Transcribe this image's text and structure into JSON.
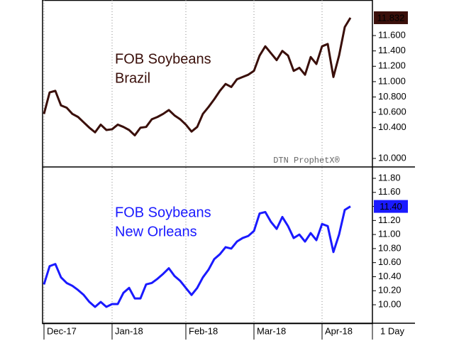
{
  "chart_data": [
    {
      "type": "line",
      "title": "FOB Soybeans",
      "subtitle": "Brazil",
      "annotation": "DTN ProphetX®",
      "ylim": [
        9.889,
        12.063
      ],
      "yticks": [
        {
          "value": 10.0,
          "label": "10.000"
        },
        {
          "value": 10.4,
          "label": "10.400"
        },
        {
          "value": 10.6,
          "label": "10.600"
        },
        {
          "value": 10.8,
          "label": "10.800"
        },
        {
          "value": 11.0,
          "label": "11.000"
        },
        {
          "value": 11.2,
          "label": "11.200"
        },
        {
          "value": 11.4,
          "label": "11.400"
        },
        {
          "value": 11.6,
          "label": "11.600"
        }
      ],
      "series": [
        {
          "color": "#3a0f0a",
          "values": [
            10.58,
            10.86,
            10.88,
            10.69,
            10.66,
            10.58,
            10.54,
            10.47,
            10.4,
            10.34,
            10.44,
            10.37,
            10.38,
            10.44,
            10.41,
            10.37,
            10.3,
            10.4,
            10.41,
            10.51,
            10.54,
            10.58,
            10.63,
            10.56,
            10.51,
            10.44,
            10.35,
            10.41,
            10.58,
            10.67,
            10.77,
            10.88,
            10.97,
            10.93,
            11.03,
            11.06,
            11.09,
            11.14,
            11.34,
            11.46,
            11.37,
            11.28,
            11.4,
            11.34,
            11.14,
            11.18,
            11.09,
            11.32,
            11.23,
            11.46,
            11.49,
            11.06,
            11.34,
            11.71,
            11.832
          ],
          "value_labels": [
            null,
            null,
            null,
            null,
            null,
            null,
            null,
            null,
            null,
            null,
            null,
            null,
            null,
            null,
            null,
            null,
            null,
            null,
            null,
            null,
            null,
            null,
            null,
            null,
            null,
            null,
            null,
            null,
            null,
            null,
            null,
            null,
            null,
            null,
            null,
            null,
            null,
            null,
            null,
            null,
            null,
            null,
            null,
            null,
            null,
            null,
            null,
            null,
            null,
            null,
            null,
            null,
            null,
            null,
            "11.832"
          ]
        }
      ]
    },
    {
      "type": "line",
      "title": "FOB Soybeans",
      "subtitle": "New Orleans",
      "interval": "1 Day",
      "categories": [
        "Dec-17",
        null,
        null,
        null,
        null,
        null,
        null,
        null,
        null,
        null,
        null,
        null,
        "Jan-18",
        null,
        null,
        null,
        null,
        null,
        null,
        null,
        null,
        null,
        null,
        null,
        null,
        "Feb-18",
        null,
        null,
        null,
        null,
        null,
        null,
        null,
        null,
        null,
        null,
        null,
        "Mar-18",
        null,
        null,
        null,
        null,
        null,
        null,
        null,
        null,
        null,
        null,
        null,
        "Apr-18",
        null,
        null,
        null,
        null,
        null
      ],
      "ylim": [
        9.737,
        11.962
      ],
      "yticks": [
        {
          "value": 10.0,
          "label": "10.00"
        },
        {
          "value": 10.2,
          "label": "10.20"
        },
        {
          "value": 10.4,
          "label": "10.40"
        },
        {
          "value": 10.6,
          "label": "10.60"
        },
        {
          "value": 10.8,
          "label": "10.80"
        },
        {
          "value": 11.0,
          "label": "11.00"
        },
        {
          "value": 11.2,
          "label": "11.20"
        },
        {
          "value": 11.4,
          "label": "11.40"
        },
        {
          "value": 11.6,
          "label": "11.60"
        },
        {
          "value": 11.8,
          "label": "11.80"
        }
      ],
      "series": [
        {
          "color": "#1a1aff",
          "values": [
            10.29,
            10.55,
            10.58,
            10.39,
            10.31,
            10.27,
            10.21,
            10.14,
            10.04,
            9.97,
            10.04,
            9.97,
            10.01,
            10.01,
            10.17,
            10.24,
            10.09,
            10.09,
            10.29,
            10.31,
            10.37,
            10.44,
            10.52,
            10.41,
            10.34,
            10.24,
            10.14,
            10.24,
            10.39,
            10.5,
            10.65,
            10.72,
            10.82,
            10.8,
            10.9,
            10.95,
            10.98,
            11.05,
            11.3,
            11.32,
            11.18,
            11.08,
            11.25,
            11.12,
            10.95,
            11.0,
            10.9,
            11.02,
            10.92,
            11.15,
            11.12,
            10.75,
            11.0,
            11.35,
            11.4
          ],
          "value_labels": [
            null,
            null,
            null,
            null,
            null,
            null,
            null,
            null,
            null,
            null,
            null,
            null,
            null,
            null,
            null,
            null,
            null,
            null,
            null,
            null,
            null,
            null,
            null,
            null,
            null,
            null,
            null,
            null,
            null,
            null,
            null,
            null,
            null,
            null,
            null,
            null,
            null,
            null,
            null,
            null,
            null,
            null,
            null,
            null,
            null,
            null,
            null,
            null,
            null,
            null,
            null,
            null,
            null,
            null,
            "11.40"
          ]
        }
      ]
    }
  ]
}
